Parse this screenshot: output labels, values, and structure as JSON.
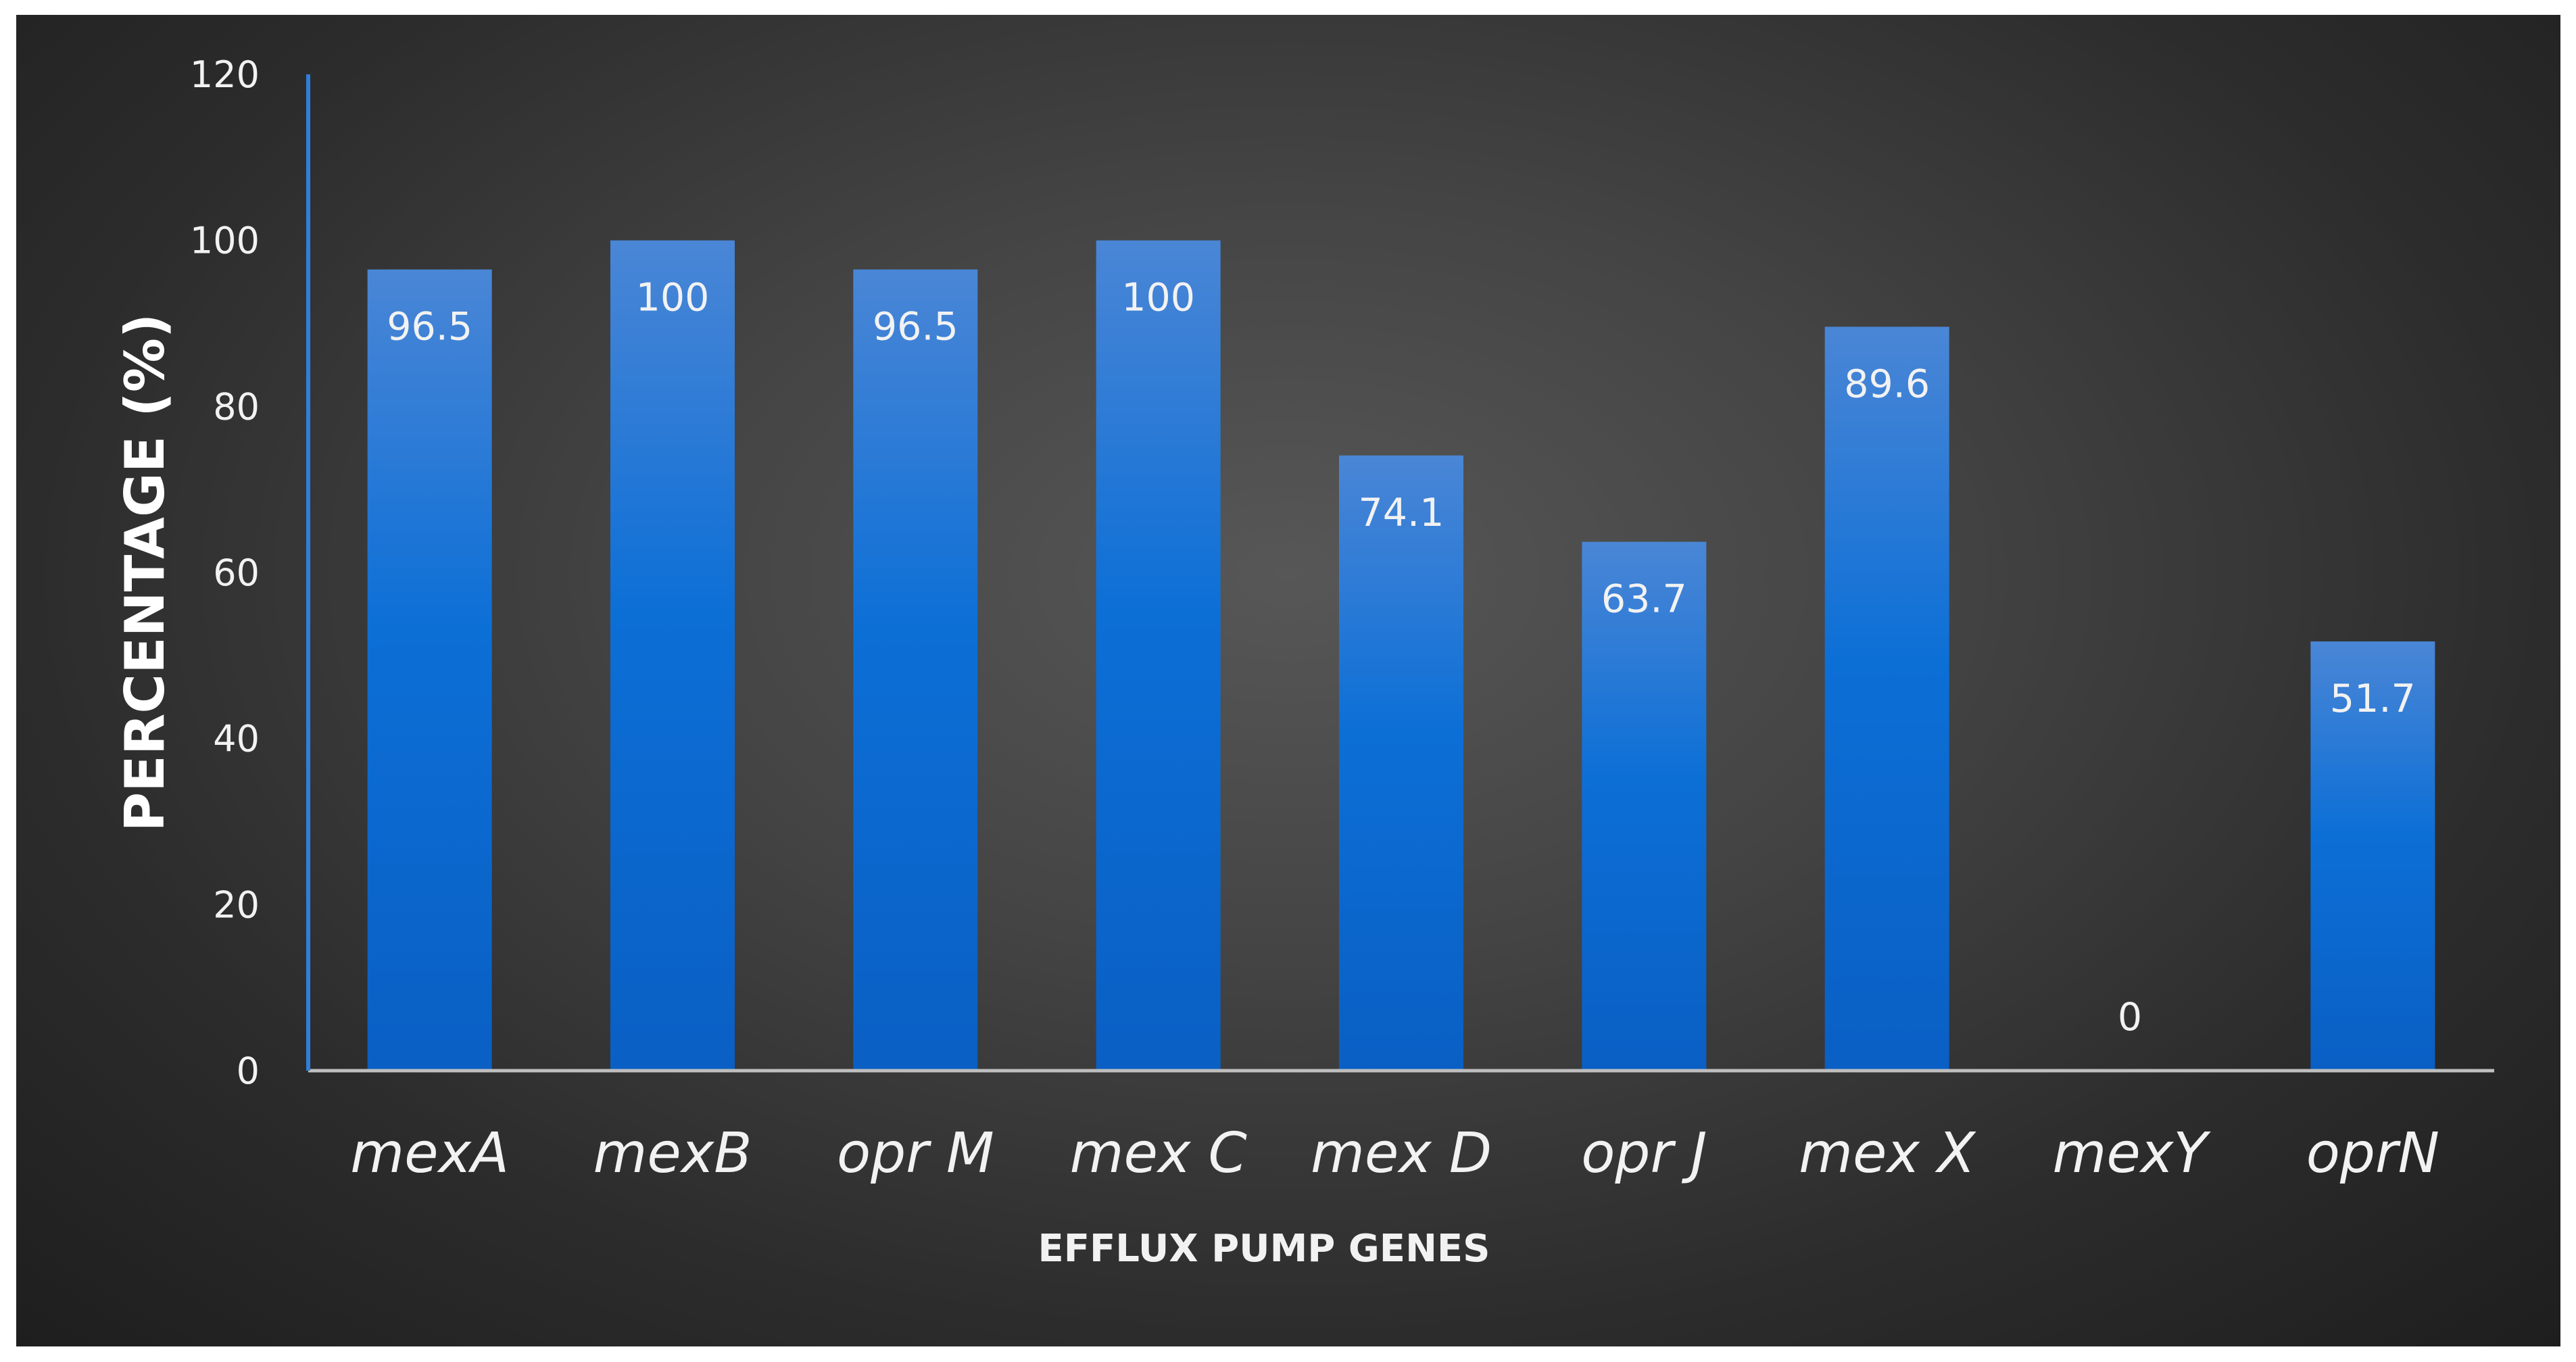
{
  "chart_data": {
    "type": "bar",
    "title": "",
    "xlabel": "EFFLUX PUMP GENES",
    "ylabel": "PERCENTAGE (%)",
    "categories": [
      "mexA",
      "mexB",
      "opr M",
      "mex C",
      "mex D",
      "opr J",
      "mex X",
      "mexY",
      "oprN"
    ],
    "values": [
      96.5,
      100,
      96.5,
      100,
      74.1,
      63.7,
      89.6,
      0,
      51.7
    ],
    "data_labels": [
      "96.5",
      "100",
      "96.5",
      "100",
      "74.1",
      "63.7",
      "89.6",
      "0",
      "51.7"
    ],
    "ylim": [
      0,
      120
    ],
    "yticks": [
      0,
      20,
      40,
      60,
      80,
      100,
      120
    ],
    "grid": false,
    "legend": "none",
    "colors": {
      "bar_top": "#4a86d6",
      "bar_mid": "#0c6fd6",
      "bar_bottom": "#0a5fc4",
      "y_axis_line": "#2f7fd8",
      "x_axis_line": "#bfbfbf",
      "text": "#f2f2f2",
      "panel_center": "#575757",
      "panel_edge": "#1e1e1e"
    }
  }
}
